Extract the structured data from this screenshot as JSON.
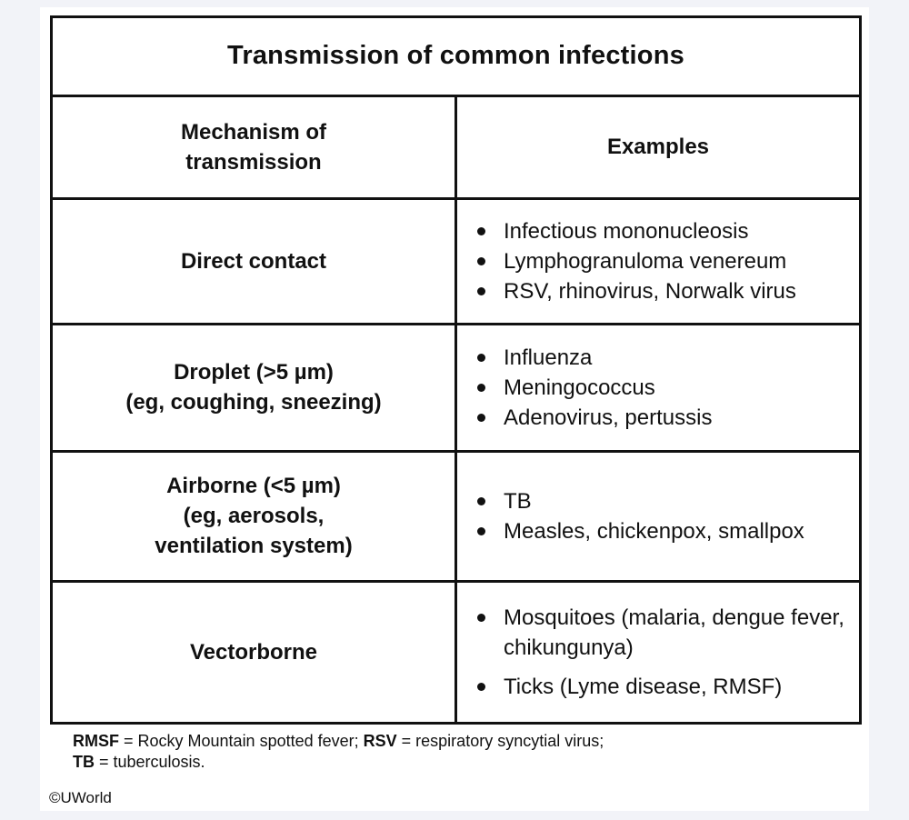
{
  "table": {
    "title": "Transmission of common infections",
    "headers": {
      "mechanism_line1": "Mechanism of",
      "mechanism_line2": "transmission",
      "examples": "Examples"
    },
    "rows": [
      {
        "mechanism": [
          "Direct contact"
        ],
        "examples": [
          "Infectious mononucleosis",
          "Lymphogranuloma venereum",
          "RSV, rhinovirus, Norwalk virus"
        ]
      },
      {
        "mechanism": [
          "Droplet (>5 µm)",
          "(eg, coughing, sneezing)"
        ],
        "examples": [
          "Influenza",
          "Meningococcus",
          "Adenovirus, pertussis"
        ]
      },
      {
        "mechanism": [
          "Airborne (<5 µm)",
          "(eg, aerosols,",
          "ventilation system)"
        ],
        "examples": [
          "TB",
          "Measles, chickenpox, smallpox"
        ]
      },
      {
        "mechanism": [
          "Vectorborne"
        ],
        "examples": [
          "Mosquitoes (malaria, dengue fever,",
          "chikungunya)",
          "Ticks (Lyme disease, RMSF)"
        ]
      }
    ]
  },
  "footnote": {
    "abbr1": "RMSF",
    "def1": " = Rocky Mountain spotted fever; ",
    "abbr2": "RSV",
    "def2": " = respiratory syncytial virus;",
    "abbr3": "TB",
    "def3": " = tuberculosis."
  },
  "copyright": "©UWorld"
}
